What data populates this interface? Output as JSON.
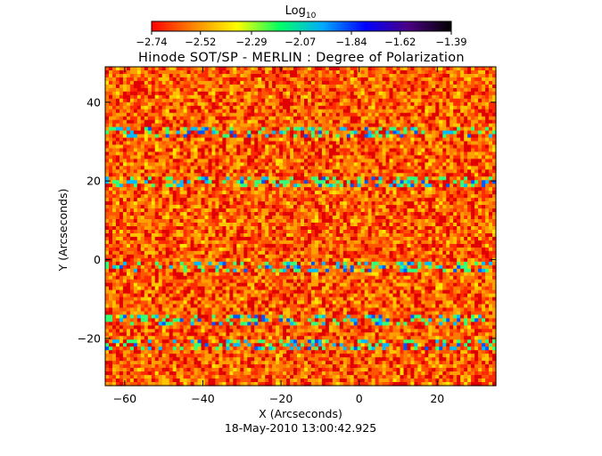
{
  "chart_data": {
    "type": "heatmap",
    "title": "Hinode SOT/SP - MERLIN : Degree of Polarization",
    "xlabel": "X (Arcseconds)",
    "ylabel": "Y (Arcseconds)",
    "footer": "18-May-2010 13:00:42.925",
    "xlim": [
      -65,
      35
    ],
    "ylim": [
      -32,
      49
    ],
    "x_ticks": [
      -60,
      -40,
      -20,
      0,
      20
    ],
    "y_ticks": [
      -20,
      0,
      20,
      40
    ],
    "x_tick_labels": [
      "−60",
      "−40",
      "−20",
      "0",
      "20"
    ],
    "y_tick_labels": [
      "−20",
      "0",
      "20",
      "40"
    ],
    "colorbar": {
      "title": "Log",
      "title_subscript": "10",
      "range": [
        -2.74,
        -1.39
      ],
      "ticks": [
        -2.74,
        -2.52,
        -2.29,
        -2.07,
        -1.84,
        -1.62,
        -1.39
      ],
      "tick_labels": [
        "−2.74",
        "−2.52",
        "−2.29",
        "−2.07",
        "−1.84",
        "−1.62",
        "−1.39"
      ],
      "colors": [
        "#ff0000",
        "#ff8800",
        "#ffff00",
        "#00ff66",
        "#00aaff",
        "#0000ff",
        "#4b0082",
        "#000000"
      ]
    },
    "background_level": -2.6,
    "polarized_rows_y": [
      32,
      20,
      -2,
      -15,
      -22
    ],
    "grid": false
  }
}
